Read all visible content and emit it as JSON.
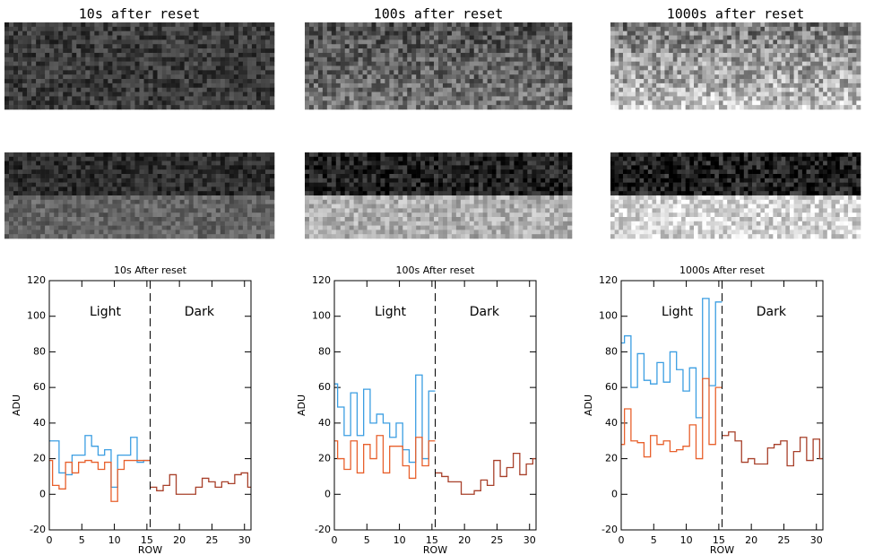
{
  "image_titles": [
    "10s after reset",
    "100s after reset",
    "1000s after reset"
  ],
  "chart_data": [
    {
      "type": "step",
      "title": "10s After reset",
      "xlabel": "ROW",
      "ylabel": "ADU",
      "annotations": [
        "Light",
        "Dark"
      ],
      "divider": 15.5,
      "x": [
        0,
        1,
        2,
        3,
        4,
        5,
        6,
        7,
        8,
        9,
        10,
        11,
        12,
        13,
        14,
        15,
        16,
        17,
        18,
        19,
        20,
        21,
        22,
        23,
        24,
        25,
        26,
        27,
        28,
        29,
        30,
        31
      ],
      "xlim": [
        0,
        31
      ],
      "ylim": [
        -20,
        120
      ],
      "xticks": [
        0,
        5,
        10,
        15,
        20,
        25,
        30
      ],
      "yticks": [
        -20,
        0,
        20,
        40,
        60,
        80,
        100,
        120
      ],
      "series": [
        {
          "color": "#3b9ee2",
          "values": [
            30,
            30,
            12,
            11,
            22,
            22,
            33,
            27,
            22,
            25,
            4,
            22,
            22,
            32,
            18,
            19,
            null,
            null,
            null,
            null,
            null,
            null,
            null,
            null,
            null,
            null,
            null,
            null,
            null,
            null,
            null,
            null
          ]
        },
        {
          "color": "#e8602c",
          "values": [
            19,
            5,
            3,
            18,
            12,
            18,
            19,
            18,
            14,
            18,
            -4,
            14,
            19,
            19,
            19,
            19,
            null,
            null,
            null,
            null,
            null,
            null,
            null,
            null,
            null,
            null,
            null,
            null,
            null,
            null,
            null,
            null
          ]
        },
        {
          "color": "#a8402a",
          "values": [
            null,
            null,
            null,
            null,
            null,
            null,
            null,
            null,
            null,
            null,
            null,
            null,
            null,
            null,
            null,
            null,
            4,
            2,
            5,
            11,
            0,
            0,
            0,
            4,
            9,
            7,
            4,
            7,
            6,
            11,
            12,
            4
          ]
        }
      ]
    },
    {
      "type": "step",
      "title": "100s After reset",
      "xlabel": "ROW",
      "ylabel": "ADU",
      "annotations": [
        "Light",
        "Dark"
      ],
      "divider": 15.5,
      "x": [
        0,
        1,
        2,
        3,
        4,
        5,
        6,
        7,
        8,
        9,
        10,
        11,
        12,
        13,
        14,
        15,
        16,
        17,
        18,
        19,
        20,
        21,
        22,
        23,
        24,
        25,
        26,
        27,
        28,
        29,
        30,
        31
      ],
      "xlim": [
        0,
        31
      ],
      "ylim": [
        -20,
        120
      ],
      "xticks": [
        0,
        5,
        10,
        15,
        20,
        25,
        30
      ],
      "yticks": [
        -20,
        0,
        20,
        40,
        60,
        80,
        100,
        120
      ],
      "series": [
        {
          "color": "#3b9ee2",
          "values": [
            62,
            49,
            33,
            57,
            33,
            59,
            40,
            45,
            40,
            32,
            40,
            25,
            18,
            67,
            20,
            58,
            null,
            null,
            null,
            null,
            null,
            null,
            null,
            null,
            null,
            null,
            null,
            null,
            null,
            null,
            null,
            null
          ]
        },
        {
          "color": "#e8602c",
          "values": [
            30,
            20,
            14,
            30,
            12,
            28,
            20,
            33,
            12,
            27,
            27,
            16,
            9,
            32,
            16,
            30,
            null,
            null,
            null,
            null,
            null,
            null,
            null,
            null,
            null,
            null,
            null,
            null,
            null,
            null,
            null,
            null
          ]
        },
        {
          "color": "#a8402a",
          "values": [
            null,
            null,
            null,
            null,
            null,
            null,
            null,
            null,
            null,
            null,
            null,
            null,
            null,
            null,
            null,
            null,
            12,
            10,
            7,
            7,
            0,
            0,
            2,
            8,
            5,
            19,
            10,
            15,
            23,
            11,
            17,
            20
          ]
        }
      ]
    },
    {
      "type": "step",
      "title": "1000s After reset",
      "xlabel": "ROW",
      "ylabel": "ADU",
      "annotations": [
        "Light",
        "Dark"
      ],
      "divider": 15.5,
      "x": [
        0,
        1,
        2,
        3,
        4,
        5,
        6,
        7,
        8,
        9,
        10,
        11,
        12,
        13,
        14,
        15,
        16,
        17,
        18,
        19,
        20,
        21,
        22,
        23,
        24,
        25,
        26,
        27,
        28,
        29,
        30,
        31
      ],
      "xlim": [
        0,
        31
      ],
      "ylim": [
        -20,
        120
      ],
      "xticks": [
        0,
        5,
        10,
        15,
        20,
        25,
        30
      ],
      "yticks": [
        -20,
        0,
        20,
        40,
        60,
        80,
        100,
        120
      ],
      "series": [
        {
          "color": "#3b9ee2",
          "values": [
            85,
            89,
            60,
            79,
            64,
            62,
            74,
            63,
            80,
            70,
            58,
            71,
            43,
            110,
            61,
            108,
            null,
            null,
            null,
            null,
            null,
            null,
            null,
            null,
            null,
            null,
            null,
            null,
            null,
            null,
            null,
            null
          ]
        },
        {
          "color": "#e8602c",
          "values": [
            28,
            48,
            30,
            29,
            21,
            33,
            28,
            30,
            24,
            25,
            27,
            39,
            20,
            65,
            28,
            60,
            null,
            null,
            null,
            null,
            null,
            null,
            null,
            null,
            null,
            null,
            null,
            null,
            null,
            null,
            null,
            null
          ]
        },
        {
          "color": "#a8402a",
          "values": [
            null,
            null,
            null,
            null,
            null,
            null,
            null,
            null,
            null,
            null,
            null,
            null,
            null,
            null,
            null,
            null,
            33,
            35,
            30,
            18,
            20,
            17,
            17,
            26,
            28,
            30,
            16,
            24,
            32,
            19,
            31,
            20
          ]
        }
      ]
    }
  ]
}
